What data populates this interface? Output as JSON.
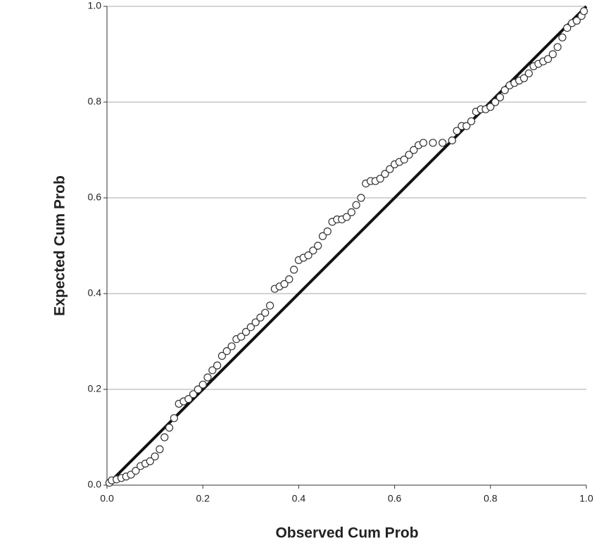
{
  "chart_data": {
    "type": "scatter",
    "xlabel": "Observed Cum Prob",
    "ylabel": "Expected Cum Prob",
    "xlim": [
      0,
      1
    ],
    "ylim": [
      0,
      1
    ],
    "xticks": [
      {
        "value": 0,
        "label": "0.0"
      },
      {
        "value": 0.2,
        "label": "0.2"
      },
      {
        "value": 0.4,
        "label": "0.4"
      },
      {
        "value": 0.6,
        "label": "0.6"
      },
      {
        "value": 0.8,
        "label": "0.8"
      },
      {
        "value": 1,
        "label": "1.0"
      }
    ],
    "yticks": [
      {
        "value": 0,
        "label": "0.0"
      },
      {
        "value": 0.2,
        "label": "0.2"
      },
      {
        "value": 0.4,
        "label": "0.4"
      },
      {
        "value": 0.6,
        "label": "0.6"
      },
      {
        "value": 0.8,
        "label": "0.8"
      },
      {
        "value": 1,
        "label": "1.0"
      }
    ],
    "grid": true,
    "reference_line": {
      "x": [
        0,
        1
      ],
      "y": [
        0,
        1
      ]
    },
    "x": [
      0.005,
      0.01,
      0.02,
      0.03,
      0.04,
      0.05,
      0.06,
      0.07,
      0.08,
      0.09,
      0.1,
      0.11,
      0.12,
      0.13,
      0.14,
      0.15,
      0.16,
      0.17,
      0.18,
      0.19,
      0.2,
      0.21,
      0.22,
      0.23,
      0.24,
      0.25,
      0.26,
      0.27,
      0.28,
      0.29,
      0.3,
      0.31,
      0.32,
      0.33,
      0.34,
      0.35,
      0.36,
      0.37,
      0.38,
      0.39,
      0.4,
      0.41,
      0.42,
      0.43,
      0.44,
      0.45,
      0.46,
      0.47,
      0.48,
      0.49,
      0.5,
      0.51,
      0.52,
      0.53,
      0.54,
      0.55,
      0.56,
      0.57,
      0.58,
      0.59,
      0.6,
      0.61,
      0.62,
      0.63,
      0.64,
      0.65,
      0.66,
      0.68,
      0.7,
      0.72,
      0.73,
      0.74,
      0.75,
      0.76,
      0.77,
      0.78,
      0.79,
      0.8,
      0.81,
      0.82,
      0.83,
      0.84,
      0.85,
      0.86,
      0.87,
      0.88,
      0.89,
      0.9,
      0.91,
      0.92,
      0.93,
      0.94,
      0.95,
      0.96,
      0.97,
      0.98,
      0.99,
      0.995
    ],
    "values": [
      0.005,
      0.01,
      0.012,
      0.015,
      0.018,
      0.022,
      0.03,
      0.04,
      0.045,
      0.05,
      0.06,
      0.075,
      0.1,
      0.12,
      0.14,
      0.17,
      0.175,
      0.18,
      0.19,
      0.2,
      0.21,
      0.225,
      0.24,
      0.25,
      0.27,
      0.28,
      0.29,
      0.305,
      0.31,
      0.32,
      0.33,
      0.34,
      0.35,
      0.36,
      0.375,
      0.41,
      0.415,
      0.42,
      0.43,
      0.45,
      0.47,
      0.475,
      0.48,
      0.49,
      0.5,
      0.52,
      0.53,
      0.55,
      0.555,
      0.555,
      0.56,
      0.57,
      0.585,
      0.6,
      0.63,
      0.635,
      0.635,
      0.64,
      0.65,
      0.66,
      0.67,
      0.675,
      0.68,
      0.69,
      0.7,
      0.71,
      0.715,
      0.715,
      0.715,
      0.72,
      0.74,
      0.75,
      0.75,
      0.76,
      0.78,
      0.785,
      0.785,
      0.79,
      0.8,
      0.81,
      0.825,
      0.835,
      0.84,
      0.845,
      0.85,
      0.86,
      0.875,
      0.88,
      0.885,
      0.89,
      0.9,
      0.915,
      0.935,
      0.955,
      0.965,
      0.97,
      0.98,
      0.99
    ]
  }
}
